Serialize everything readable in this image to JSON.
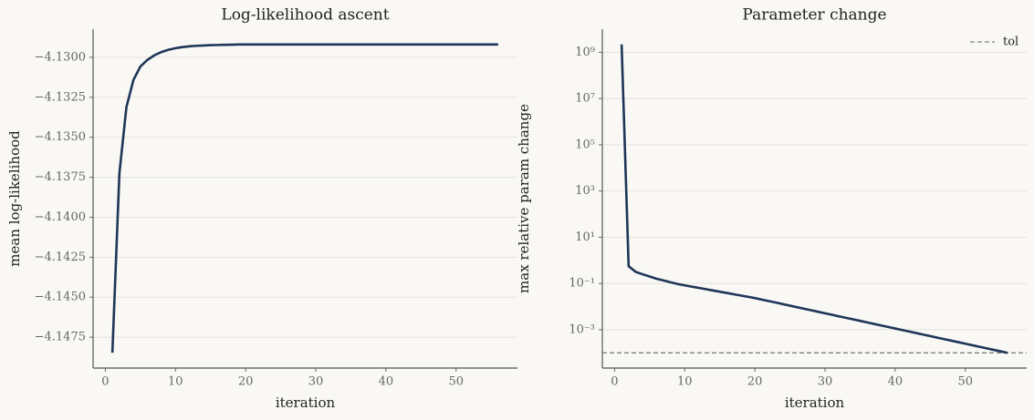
{
  "chart_data": [
    {
      "type": "line",
      "title": "Log-likelihood ascent",
      "x_label": "iteration",
      "y_label": "mean log-likelihood",
      "x": [
        1,
        2,
        3,
        4,
        5,
        6,
        7,
        8,
        9,
        10,
        11,
        12,
        13,
        14,
        15,
        16,
        17,
        18,
        19,
        20,
        21,
        22,
        23,
        24,
        25,
        26,
        27,
        28,
        29,
        30,
        31,
        32,
        33,
        34,
        35,
        36,
        37,
        38,
        39,
        40,
        41,
        42,
        43,
        44,
        45,
        46,
        47,
        48,
        49,
        50,
        51,
        52,
        53,
        54,
        55,
        56
      ],
      "series": [
        {
          "name": "log-likelihood",
          "color": "#1f3558",
          "values": [
            -4.14847,
            -4.13727,
            -4.13312,
            -4.13142,
            -4.13057,
            -4.13016,
            -4.12987,
            -4.12967,
            -4.12953,
            -4.12943,
            -4.12936,
            -4.12931,
            -4.12928,
            -4.12926,
            -4.12924,
            -4.12923,
            -4.12922,
            -4.12921,
            -4.1292,
            -4.1292,
            -4.1292,
            -4.1292,
            -4.1292,
            -4.1292,
            -4.1292,
            -4.1292,
            -4.1292,
            -4.1292,
            -4.1292,
            -4.1292,
            -4.1292,
            -4.1292,
            -4.1292,
            -4.1292,
            -4.1292,
            -4.1292,
            -4.1292,
            -4.1292,
            -4.1292,
            -4.1292,
            -4.1292,
            -4.1292,
            -4.1292,
            -4.1292,
            -4.1292,
            -4.1292,
            -4.1292,
            -4.1292,
            -4.1292,
            -4.1292,
            -4.1292,
            -4.1292,
            -4.1292,
            -4.1292,
            -4.1292,
            -4.1292
          ]
        }
      ],
      "xlim": [
        -1.75,
        58.75
      ],
      "xticks": [
        0,
        10,
        20,
        30,
        40,
        50
      ],
      "ylim": [
        -4.14943,
        -4.12824
      ],
      "yticks": [
        {
          "value": -4.13,
          "label": "−4.1300"
        },
        {
          "value": -4.1325,
          "label": "−4.1325"
        },
        {
          "value": -4.135,
          "label": "−4.1350"
        },
        {
          "value": -4.1375,
          "label": "−4.1375"
        },
        {
          "value": -4.14,
          "label": "−4.1400"
        },
        {
          "value": -4.1425,
          "label": "−4.1425"
        },
        {
          "value": -4.145,
          "label": "−4.1450"
        },
        {
          "value": -4.1475,
          "label": "−4.1475"
        }
      ],
      "grid": true,
      "log_y": false
    },
    {
      "type": "line",
      "title": "Parameter change",
      "x_label": "iteration",
      "y_label": "max relative param change",
      "x": [
        1,
        2,
        3,
        4,
        5,
        6,
        7,
        8,
        9,
        10,
        11,
        12,
        13,
        14,
        15,
        16,
        17,
        18,
        19,
        20,
        21,
        22,
        23,
        24,
        25,
        26,
        27,
        28,
        29,
        30,
        31,
        32,
        33,
        34,
        35,
        36,
        37,
        38,
        39,
        40,
        41,
        42,
        43,
        44,
        45,
        46,
        47,
        48,
        49,
        50,
        51,
        52,
        53,
        54,
        55,
        56
      ],
      "series": [
        {
          "name": "param change",
          "color": "#1f3558",
          "values": [
            2200000000.0,
            0.56,
            0.32,
            0.25,
            0.2,
            0.16,
            0.135,
            0.112,
            0.095,
            0.083,
            0.0733,
            0.0646,
            0.0569,
            0.0501,
            0.0442,
            0.0389,
            0.0343,
            0.0302,
            0.0266,
            0.0234,
            0.0201,
            0.0173,
            0.0149,
            0.0128,
            0.011,
            0.00944,
            0.00811,
            0.00698,
            0.006,
            0.00515,
            0.00443,
            0.0038,
            0.00327,
            0.00281,
            0.00242,
            0.00207,
            0.00178,
            0.00153,
            0.00132,
            0.00113,
            0.000973,
            0.000836,
            0.000719,
            0.000618,
            0.000531,
            0.000456,
            0.000392,
            0.000337,
            0.00029,
            0.000249,
            0.000214,
            0.000184,
            0.000158,
            0.000136,
            0.000117,
            0.0001
          ]
        }
      ],
      "reference_lines": [
        {
          "name": "tol",
          "value": 0.0001,
          "color": "#808080",
          "style": "dashed"
        }
      ],
      "legend": "upper right",
      "xlim": [
        -1.75,
        58.75
      ],
      "xticks": [
        0,
        10,
        20,
        30,
        40,
        50
      ],
      "ylim": [
        2.2e-05,
        10000000000.0
      ],
      "yticks": [
        {
          "value": 1000000000.0,
          "label": "10⁹"
        },
        {
          "value": 10000000.0,
          "label": "10⁷"
        },
        {
          "value": 100000.0,
          "label": "10⁵"
        },
        {
          "value": 1000,
          "label": "10³"
        },
        {
          "value": 10,
          "label": "10¹"
        },
        {
          "value": 0.1,
          "label": "10⁻¹"
        },
        {
          "value": 0.001,
          "label": "10⁻³"
        }
      ],
      "grid": true,
      "log_y": true
    }
  ]
}
